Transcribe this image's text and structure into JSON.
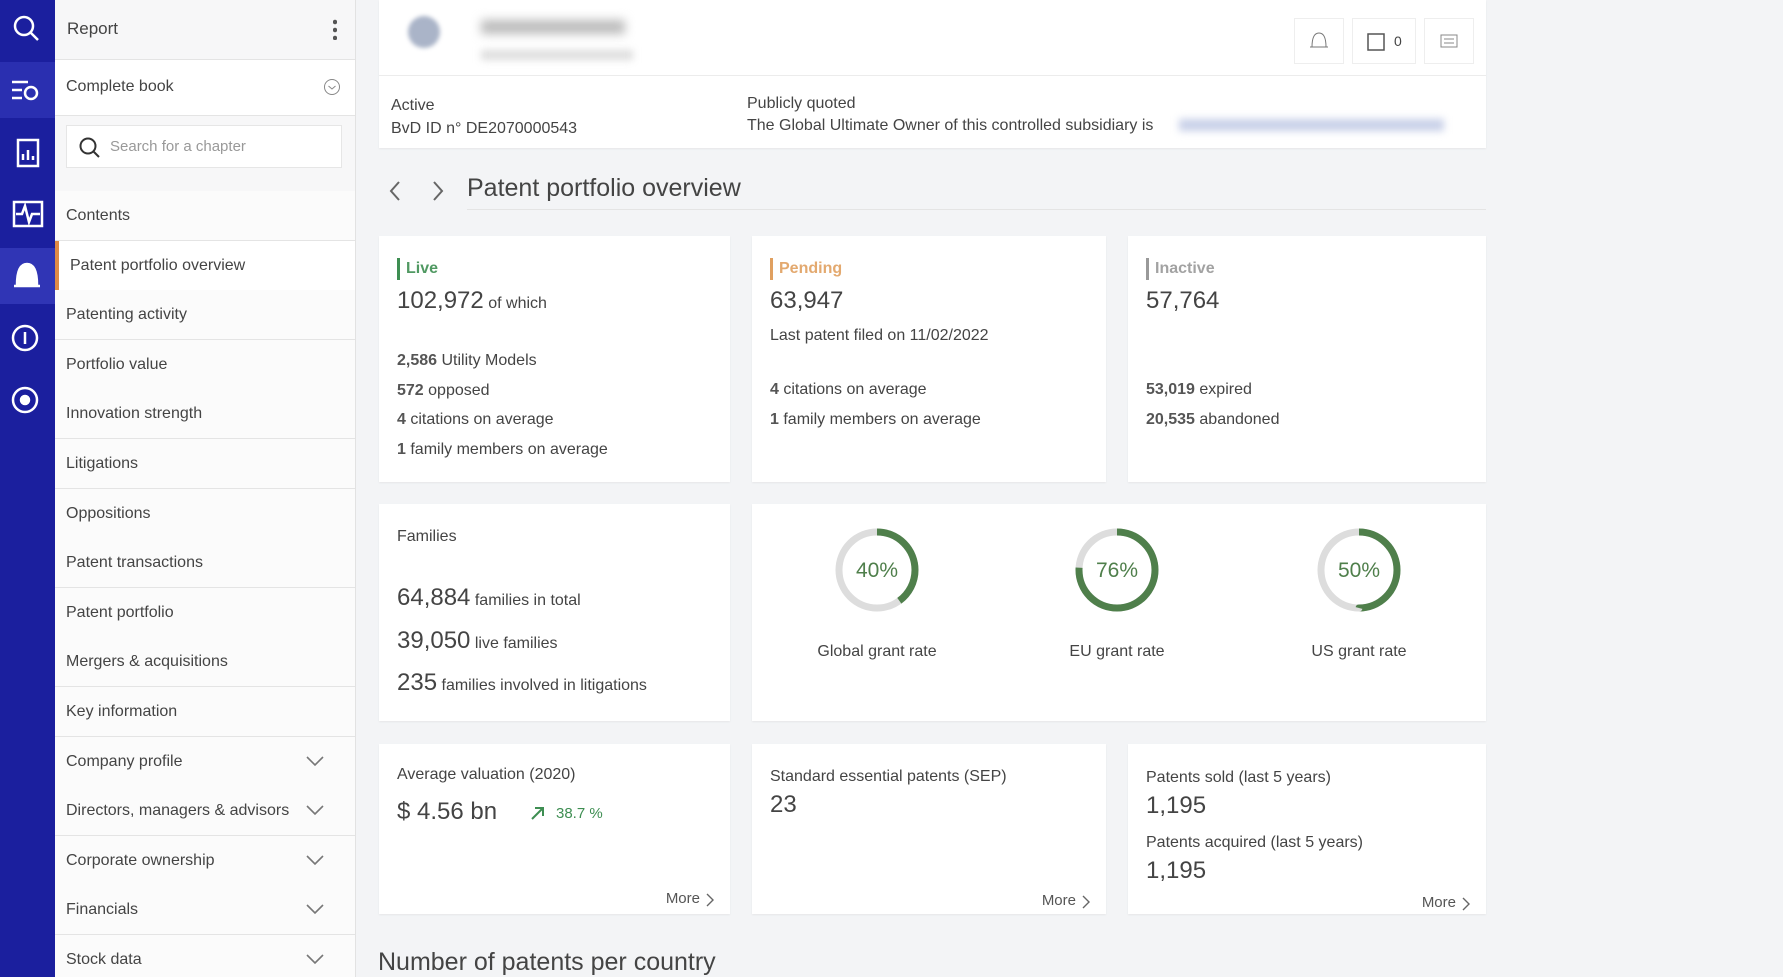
{
  "sidebar": {
    "title": "Report",
    "book": "Complete book",
    "search_placeholder": "Search for a chapter",
    "selected": 1,
    "chapters": [
      {
        "label": "Contents"
      },
      {
        "label": "Patent portfolio overview"
      },
      {
        "label": "Patenting activity"
      },
      {
        "label": "Portfolio value"
      },
      {
        "label": "Innovation strength"
      },
      {
        "label": "Litigations"
      },
      {
        "label": "Oppositions"
      },
      {
        "label": "Patent transactions"
      },
      {
        "label": "Patent portfolio"
      },
      {
        "label": "Mergers & acquisitions"
      },
      {
        "label": "Key information"
      },
      {
        "label": "Company profile",
        "expandable": true
      },
      {
        "label": "Directors, managers & advisors",
        "expandable": true
      },
      {
        "label": "Corporate ownership",
        "expandable": true
      },
      {
        "label": "Financials",
        "expandable": true
      },
      {
        "label": "Stock data",
        "expandable": true
      }
    ]
  },
  "header": {
    "status": "Active",
    "bvd_id": "BvD ID n° DE2070000543",
    "listing": "Publicly quoted",
    "owner_text": "The Global Ultimate Owner of this controlled subsidiary is",
    "count": 0
  },
  "section_title": "Patent portfolio overview",
  "status_cards": [
    {
      "label": "Live",
      "color": "#3e8e52",
      "total": "102,972",
      "total_note": "of which",
      "items": [
        {
          "value": "2,586",
          "label": "Utility Models"
        },
        {
          "value": "572",
          "label": "opposed"
        },
        {
          "value": "4",
          "label": "citations on average"
        },
        {
          "value": "1",
          "label": "family members on average"
        }
      ]
    },
    {
      "label": "Pending",
      "color": "#e0a060",
      "total": "63,947",
      "note": "Last patent filed on 11/02/2022",
      "items": [
        {
          "value": "4",
          "label": "citations on average"
        },
        {
          "value": "1",
          "label": "family members on average"
        }
      ]
    },
    {
      "label": "Inactive",
      "color": "#999999",
      "total": "57,764",
      "items": [
        {
          "value": "53,019",
          "label": "expired"
        },
        {
          "value": "20,535",
          "label": "abandoned"
        }
      ]
    }
  ],
  "families": {
    "title": "Families",
    "rows": [
      {
        "value": "64,884",
        "label": "families in total"
      },
      {
        "value": "39,050",
        "label": "live families"
      },
      {
        "value": "235",
        "label": "families involved in litigations"
      }
    ]
  },
  "grant_rates": {
    "color": "#4f7f4b",
    "track": "#dddddd",
    "values": [
      40,
      76,
      50
    ],
    "value_labels": [
      "40%",
      "76%",
      "50%"
    ],
    "labels": [
      "Global grant rate",
      "EU grant rate",
      "US grant rate"
    ]
  },
  "valuation": {
    "title": "Average valuation (2020)",
    "value": "$ 4.56 bn",
    "change": "38.7 %",
    "link": "More"
  },
  "sep": {
    "title": "Standard essential patents (SEP)",
    "value": "23",
    "link": "More"
  },
  "transactions": {
    "rows": [
      {
        "title": "Patents sold (last 5 years)",
        "value": "1,195"
      },
      {
        "title": "Patents acquired (last 5 years)",
        "value": "1,195"
      }
    ],
    "link": "More"
  },
  "bottom_title": "Number of patents per country"
}
